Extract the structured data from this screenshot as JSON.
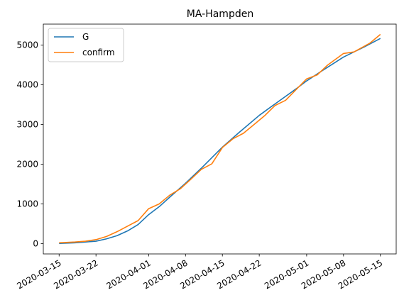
{
  "chart_data": {
    "type": "line",
    "title": "MA-Hampden",
    "xlabel": "",
    "ylabel": "",
    "x_type": "date",
    "xlim": [
      "2020-03-12",
      "2020-05-18"
    ],
    "ylim": [
      -260,
      5530
    ],
    "x_ticks": [
      "2020-03-15",
      "2020-03-22",
      "2020-04-01",
      "2020-04-08",
      "2020-04-15",
      "2020-04-22",
      "2020-05-01",
      "2020-05-08",
      "2020-05-15"
    ],
    "y_ticks": [
      0,
      1000,
      2000,
      3000,
      4000,
      5000
    ],
    "grid": false,
    "legend_position": "top-left",
    "series": [
      {
        "name": "G",
        "color": "#1f77b4",
        "points": [
          [
            "2020-03-15",
            5
          ],
          [
            "2020-03-18",
            20
          ],
          [
            "2020-03-20",
            40
          ],
          [
            "2020-03-22",
            60
          ],
          [
            "2020-03-24",
            120
          ],
          [
            "2020-03-26",
            200
          ],
          [
            "2020-03-28",
            320
          ],
          [
            "2020-03-30",
            480
          ],
          [
            "2020-04-01",
            730
          ],
          [
            "2020-04-03",
            930
          ],
          [
            "2020-04-05",
            1170
          ],
          [
            "2020-04-08",
            1520
          ],
          [
            "2020-04-11",
            1900
          ],
          [
            "2020-04-15",
            2430
          ],
          [
            "2020-04-18",
            2780
          ],
          [
            "2020-04-22",
            3230
          ],
          [
            "2020-04-25",
            3520
          ],
          [
            "2020-04-29",
            3900
          ],
          [
            "2020-05-01",
            4100
          ],
          [
            "2020-05-04",
            4360
          ],
          [
            "2020-05-08",
            4700
          ],
          [
            "2020-05-12",
            4960
          ],
          [
            "2020-05-15",
            5170
          ]
        ]
      },
      {
        "name": "confirm",
        "color": "#ff7f0e",
        "points": [
          [
            "2020-03-15",
            20
          ],
          [
            "2020-03-18",
            40
          ],
          [
            "2020-03-20",
            60
          ],
          [
            "2020-03-22",
            100
          ],
          [
            "2020-03-24",
            180
          ],
          [
            "2020-03-26",
            300
          ],
          [
            "2020-03-28",
            440
          ],
          [
            "2020-03-30",
            580
          ],
          [
            "2020-04-01",
            880
          ],
          [
            "2020-04-03",
            1000
          ],
          [
            "2020-04-05",
            1220
          ],
          [
            "2020-04-07",
            1380
          ],
          [
            "2020-04-09",
            1620
          ],
          [
            "2020-04-11",
            1870
          ],
          [
            "2020-04-13",
            2010
          ],
          [
            "2020-04-15",
            2420
          ],
          [
            "2020-04-17",
            2640
          ],
          [
            "2020-04-19",
            2780
          ],
          [
            "2020-04-21",
            3000
          ],
          [
            "2020-04-23",
            3220
          ],
          [
            "2020-04-25",
            3480
          ],
          [
            "2020-04-27",
            3610
          ],
          [
            "2020-04-29",
            3880
          ],
          [
            "2020-05-01",
            4150
          ],
          [
            "2020-05-03",
            4250
          ],
          [
            "2020-05-05",
            4500
          ],
          [
            "2020-05-08",
            4790
          ],
          [
            "2020-05-10",
            4830
          ],
          [
            "2020-05-13",
            5050
          ],
          [
            "2020-05-15",
            5270
          ]
        ]
      }
    ]
  }
}
